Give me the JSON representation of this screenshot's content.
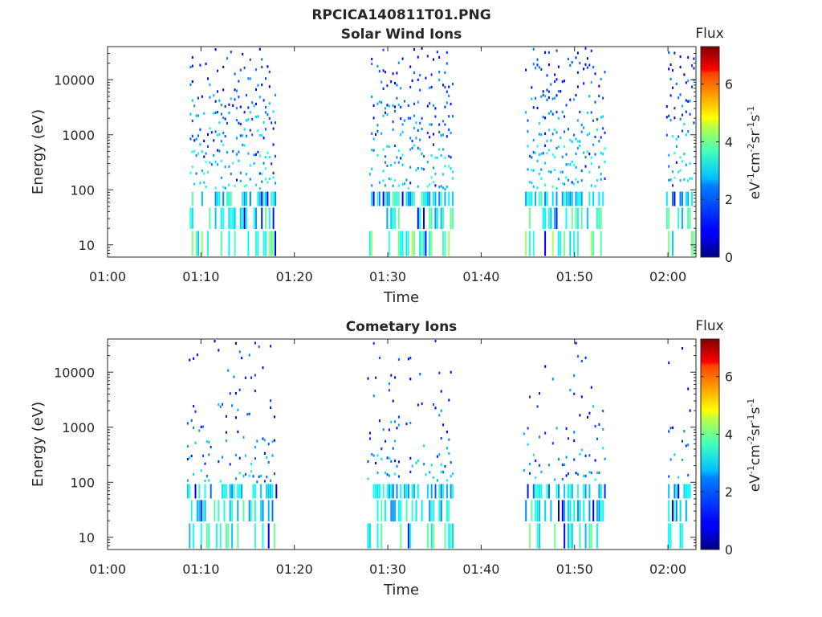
{
  "figure": {
    "title": "RPCICA140811T01.PNG",
    "colors": {
      "axis": "#262626",
      "background": "#ffffff"
    }
  },
  "chart_data": [
    {
      "type": "heatmap",
      "title": "Solar Wind Ions",
      "xlabel": "Time",
      "ylabel": "Energy (eV)",
      "x_scale": "time",
      "y_scale": "log",
      "xlim": [
        "01:00",
        "02:03"
      ],
      "ylim": [
        6,
        40000
      ],
      "xticks": [
        "01:00",
        "01:10",
        "01:20",
        "01:30",
        "01:40",
        "01:50",
        "02:00"
      ],
      "yticks": [
        10,
        100,
        1000,
        10000
      ],
      "ytick_labels": [
        "10",
        "100",
        "1000",
        "10000"
      ],
      "colorbar": {
        "title": "Flux",
        "label": "eV-1cm-2sr-1s-1",
        "label_parts": {
          "a": "eV",
          "b": "-1",
          "c": "cm",
          "d": "-2",
          "e": "sr",
          "f": "-1",
          "g": "s",
          "h": "-1"
        },
        "range": [
          0,
          7.3
        ],
        "ticks": [
          "0",
          "2",
          "4",
          "6"
        ],
        "colormap": "jet"
      },
      "bursts": [
        {
          "start": "01:08.8",
          "end": "01:18.0"
        },
        {
          "start": "01:28.0",
          "end": "01:37.0"
        },
        {
          "start": "01:44.7",
          "end": "01:53.2"
        },
        {
          "start": "01:59.8",
          "end": "02:02.7"
        }
      ],
      "channels": [
        {
          "energy_eV": 10,
          "flux_typical": 3.2,
          "occupancy": 0.45
        },
        {
          "energy_eV": 35,
          "flux_typical": 2.8,
          "occupancy": 0.4
        },
        {
          "energy_eV": 70,
          "flux_typical": 2.6,
          "occupancy": 0.55
        },
        {
          "energy_eV": 130,
          "flux_typical": 2.5,
          "occupancy": 0.55
        },
        {
          "energy_eV": 250,
          "flux_typical": 2.4,
          "occupancy": 0.6
        },
        {
          "energy_eV": 500,
          "flux_typical": 2.2,
          "occupancy": 0.65
        },
        {
          "energy_eV": 1000,
          "flux_typical": 2.0,
          "occupancy": 0.6
        },
        {
          "energy_eV": 2000,
          "flux_typical": 1.8,
          "occupancy": 0.55
        },
        {
          "energy_eV": 4000,
          "flux_typical": 1.6,
          "occupancy": 0.5
        },
        {
          "energy_eV": 8000,
          "flux_typical": 1.4,
          "occupancy": 0.45
        },
        {
          "energy_eV": 16000,
          "flux_typical": 1.2,
          "occupancy": 0.4
        },
        {
          "energy_eV": 30000,
          "flux_typical": 1.0,
          "occupancy": 0.3
        }
      ]
    },
    {
      "type": "heatmap",
      "title": "Cometary Ions",
      "xlabel": "Time",
      "ylabel": "Energy (eV)",
      "x_scale": "time",
      "y_scale": "log",
      "xlim": [
        "01:00",
        "02:03"
      ],
      "ylim": [
        6,
        40000
      ],
      "xticks": [
        "01:00",
        "01:10",
        "01:20",
        "01:30",
        "01:40",
        "01:50",
        "02:00"
      ],
      "yticks": [
        10,
        100,
        1000,
        10000
      ],
      "ytick_labels": [
        "10",
        "100",
        "1000",
        "10000"
      ],
      "colorbar": {
        "title": "Flux",
        "label": "eV-1cm-2sr-1s-1",
        "label_parts": {
          "a": "eV",
          "b": "-1",
          "c": "cm",
          "d": "-2",
          "e": "sr",
          "f": "-1",
          "g": "s",
          "h": "-1"
        },
        "range": [
          0,
          7.3
        ],
        "ticks": [
          "0",
          "2",
          "4",
          "6"
        ],
        "colormap": "jet"
      },
      "bursts": [
        {
          "start": "01:08.5",
          "end": "01:18.0"
        },
        {
          "start": "01:27.8",
          "end": "01:37.0"
        },
        {
          "start": "01:44.5",
          "end": "01:53.2"
        },
        {
          "start": "01:59.8",
          "end": "02:02.3"
        }
      ],
      "channels": [
        {
          "energy_eV": 10,
          "flux_typical": 3.0,
          "occupancy": 0.35
        },
        {
          "energy_eV": 35,
          "flux_typical": 2.6,
          "occupancy": 0.4
        },
        {
          "energy_eV": 70,
          "flux_typical": 2.4,
          "occupancy": 0.55
        },
        {
          "energy_eV": 130,
          "flux_typical": 2.0,
          "occupancy": 0.4
        },
        {
          "energy_eV": 250,
          "flux_typical": 1.8,
          "occupancy": 0.35
        },
        {
          "energy_eV": 500,
          "flux_typical": 1.8,
          "occupancy": 0.22
        },
        {
          "energy_eV": 1000,
          "flux_typical": 1.6,
          "occupancy": 0.18
        },
        {
          "energy_eV": 2000,
          "flux_typical": 1.5,
          "occupancy": 0.15
        },
        {
          "energy_eV": 4000,
          "flux_typical": 1.3,
          "occupancy": 0.12
        },
        {
          "energy_eV": 8000,
          "flux_typical": 1.2,
          "occupancy": 0.1
        },
        {
          "energy_eV": 16000,
          "flux_typical": 1.1,
          "occupancy": 0.07
        },
        {
          "energy_eV": 30000,
          "flux_typical": 1.0,
          "occupancy": 0.04
        }
      ]
    }
  ]
}
